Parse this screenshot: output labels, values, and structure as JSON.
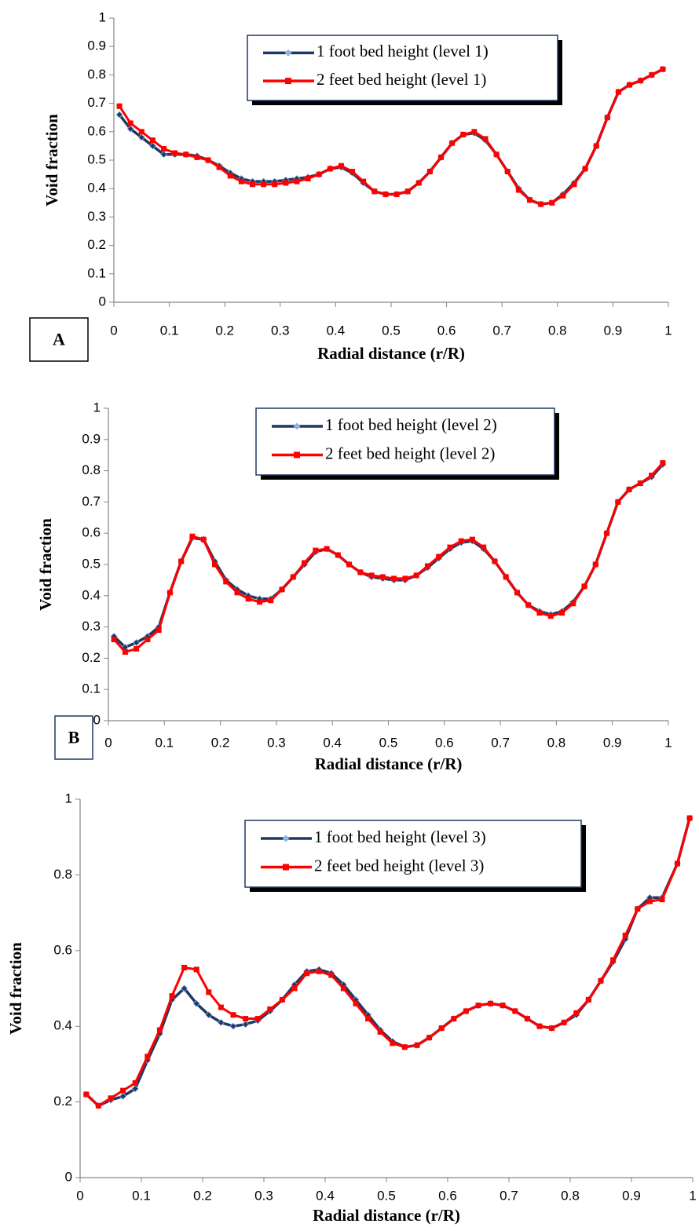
{
  "chart_data": [
    {
      "type": "line",
      "panel_label": "A",
      "xlabel": "Radial distance (r/R)",
      "ylabel": "Void fraction",
      "x": [
        0.01,
        0.03,
        0.05,
        0.07,
        0.09,
        0.11,
        0.13,
        0.15,
        0.17,
        0.19,
        0.21,
        0.23,
        0.25,
        0.27,
        0.29,
        0.31,
        0.33,
        0.35,
        0.37,
        0.39,
        0.41,
        0.43,
        0.45,
        0.47,
        0.49,
        0.51,
        0.53,
        0.55,
        0.57,
        0.59,
        0.61,
        0.63,
        0.65,
        0.67,
        0.69,
        0.71,
        0.73,
        0.75,
        0.77,
        0.79,
        0.81,
        0.83,
        0.85,
        0.87,
        0.89,
        0.91,
        0.93,
        0.95,
        0.97,
        0.99
      ],
      "series": [
        {
          "name": "1 foot bed height (level 1)",
          "color": "#1f3864",
          "marker": "diamond",
          "values": [
            0.66,
            0.61,
            0.58,
            0.55,
            0.52,
            0.52,
            0.52,
            0.515,
            0.5,
            0.48,
            0.455,
            0.435,
            0.425,
            0.425,
            0.425,
            0.43,
            0.435,
            0.44,
            0.45,
            0.47,
            0.475,
            0.455,
            0.42,
            0.39,
            0.38,
            0.38,
            0.39,
            0.42,
            0.46,
            0.51,
            0.56,
            0.59,
            0.595,
            0.57,
            0.52,
            0.46,
            0.4,
            0.36,
            0.345,
            0.35,
            0.38,
            0.42,
            0.47,
            0.55,
            0.65,
            0.74,
            0.765,
            0.78,
            0.8,
            0.82
          ]
        },
        {
          "name": "2 feet bed height (level 1)",
          "color": "#ff0000",
          "marker": "square",
          "values": [
            0.69,
            0.63,
            0.6,
            0.57,
            0.54,
            0.525,
            0.52,
            0.51,
            0.5,
            0.475,
            0.445,
            0.425,
            0.415,
            0.415,
            0.415,
            0.42,
            0.425,
            0.435,
            0.45,
            0.47,
            0.48,
            0.46,
            0.425,
            0.39,
            0.38,
            0.38,
            0.39,
            0.42,
            0.46,
            0.51,
            0.56,
            0.59,
            0.6,
            0.575,
            0.52,
            0.46,
            0.395,
            0.36,
            0.345,
            0.35,
            0.375,
            0.415,
            0.47,
            0.55,
            0.65,
            0.74,
            0.765,
            0.78,
            0.8,
            0.82
          ]
        }
      ],
      "xlim": [
        0,
        1
      ],
      "ylim": [
        0,
        1
      ],
      "xticks": [
        0,
        0.1,
        0.2,
        0.3,
        0.4,
        0.5,
        0.6,
        0.7,
        0.8,
        0.9,
        1
      ],
      "yticks": [
        0,
        0.1,
        0.2,
        0.3,
        0.4,
        0.5,
        0.6,
        0.7,
        0.8,
        0.9,
        1
      ],
      "legend": "top"
    },
    {
      "type": "line",
      "panel_label": "B",
      "xlabel": "Radial distance (r/R)",
      "ylabel": "Void fraction",
      "x": [
        0.01,
        0.03,
        0.05,
        0.07,
        0.09,
        0.11,
        0.13,
        0.15,
        0.17,
        0.19,
        0.21,
        0.23,
        0.25,
        0.27,
        0.29,
        0.31,
        0.33,
        0.35,
        0.37,
        0.39,
        0.41,
        0.43,
        0.45,
        0.47,
        0.49,
        0.51,
        0.53,
        0.55,
        0.57,
        0.59,
        0.61,
        0.63,
        0.65,
        0.67,
        0.69,
        0.71,
        0.73,
        0.75,
        0.77,
        0.79,
        0.81,
        0.83,
        0.85,
        0.87,
        0.89,
        0.91,
        0.93,
        0.95,
        0.97,
        0.99
      ],
      "series": [
        {
          "name": "1 foot bed height (level 2)",
          "color": "#1f3864",
          "marker": "diamond",
          "values": [
            0.27,
            0.235,
            0.25,
            0.27,
            0.3,
            0.41,
            0.51,
            0.585,
            0.58,
            0.51,
            0.45,
            0.42,
            0.4,
            0.39,
            0.39,
            0.42,
            0.46,
            0.5,
            0.54,
            0.55,
            0.53,
            0.5,
            0.475,
            0.46,
            0.455,
            0.45,
            0.45,
            0.465,
            0.49,
            0.52,
            0.55,
            0.57,
            0.575,
            0.55,
            0.51,
            0.46,
            0.41,
            0.37,
            0.35,
            0.34,
            0.35,
            0.38,
            0.43,
            0.5,
            0.6,
            0.7,
            0.74,
            0.76,
            0.78,
            0.82
          ]
        },
        {
          "name": "2 feet bed height (level 2)",
          "color": "#ff0000",
          "marker": "square",
          "values": [
            0.26,
            0.22,
            0.23,
            0.26,
            0.29,
            0.41,
            0.51,
            0.59,
            0.58,
            0.5,
            0.445,
            0.41,
            0.39,
            0.38,
            0.385,
            0.42,
            0.46,
            0.505,
            0.545,
            0.55,
            0.53,
            0.5,
            0.475,
            0.465,
            0.46,
            0.455,
            0.455,
            0.465,
            0.495,
            0.525,
            0.555,
            0.575,
            0.58,
            0.555,
            0.51,
            0.46,
            0.41,
            0.37,
            0.345,
            0.335,
            0.345,
            0.375,
            0.43,
            0.5,
            0.6,
            0.7,
            0.74,
            0.76,
            0.785,
            0.825
          ]
        }
      ],
      "xlim": [
        0,
        1
      ],
      "ylim": [
        0,
        1
      ],
      "xticks": [
        0,
        0.1,
        0.2,
        0.3,
        0.4,
        0.5,
        0.6,
        0.7,
        0.8,
        0.9,
        1
      ],
      "yticks": [
        0,
        0.1,
        0.2,
        0.3,
        0.4,
        0.5,
        0.6,
        0.7,
        0.8,
        0.9,
        1
      ],
      "legend": "top"
    },
    {
      "type": "line",
      "xlabel": "Radial distance (r/R)",
      "ylabel": "Void fraction",
      "x": [
        0.01,
        0.03,
        0.05,
        0.07,
        0.09,
        0.11,
        0.13,
        0.15,
        0.17,
        0.19,
        0.21,
        0.23,
        0.25,
        0.27,
        0.29,
        0.31,
        0.33,
        0.35,
        0.37,
        0.39,
        0.41,
        0.43,
        0.45,
        0.47,
        0.49,
        0.51,
        0.53,
        0.55,
        0.57,
        0.59,
        0.61,
        0.63,
        0.65,
        0.67,
        0.69,
        0.71,
        0.73,
        0.75,
        0.77,
        0.79,
        0.81,
        0.83,
        0.85,
        0.87,
        0.89,
        0.91,
        0.93,
        0.95,
        0.975,
        0.995
      ],
      "series": [
        {
          "name": "1 foot bed height (level 3)",
          "color": "#1f3864",
          "marker": "diamond",
          "values": [
            0.22,
            0.19,
            0.205,
            0.215,
            0.235,
            0.31,
            0.38,
            0.47,
            0.5,
            0.46,
            0.43,
            0.41,
            0.4,
            0.405,
            0.415,
            0.44,
            0.47,
            0.51,
            0.545,
            0.55,
            0.54,
            0.51,
            0.47,
            0.43,
            0.39,
            0.36,
            0.345,
            0.35,
            0.37,
            0.395,
            0.42,
            0.44,
            0.455,
            0.46,
            0.455,
            0.44,
            0.42,
            0.4,
            0.395,
            0.41,
            0.43,
            0.47,
            0.52,
            0.57,
            0.63,
            0.71,
            0.74,
            0.74,
            0.83,
            0.95
          ]
        },
        {
          "name": "2 feet bed height (level 3)",
          "color": "#ff0000",
          "marker": "square",
          "values": [
            0.22,
            0.19,
            0.21,
            0.23,
            0.25,
            0.32,
            0.39,
            0.48,
            0.555,
            0.55,
            0.49,
            0.45,
            0.43,
            0.42,
            0.42,
            0.445,
            0.47,
            0.5,
            0.54,
            0.545,
            0.535,
            0.5,
            0.46,
            0.42,
            0.385,
            0.355,
            0.345,
            0.35,
            0.37,
            0.395,
            0.42,
            0.44,
            0.455,
            0.46,
            0.455,
            0.44,
            0.42,
            0.4,
            0.395,
            0.41,
            0.435,
            0.47,
            0.52,
            0.575,
            0.64,
            0.71,
            0.73,
            0.735,
            0.83,
            0.95
          ]
        }
      ],
      "xlim": [
        0,
        1
      ],
      "ylim": [
        0,
        1
      ],
      "xticks": [
        0,
        0.1,
        0.2,
        0.3,
        0.4,
        0.5,
        0.6,
        0.7,
        0.8,
        0.9,
        1
      ],
      "yticks": [
        0,
        0.2,
        0.4,
        0.6,
        0.8,
        1
      ],
      "legend": "top"
    }
  ]
}
